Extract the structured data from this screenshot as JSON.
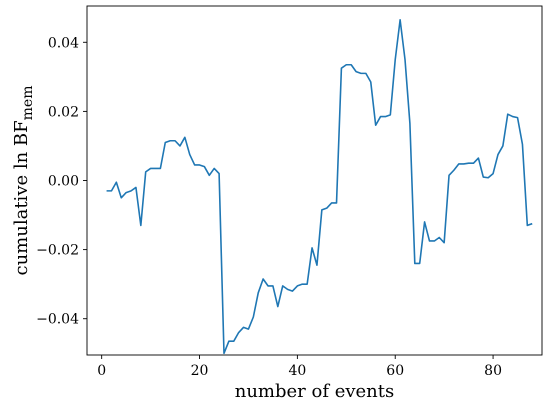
{
  "chart_data": {
    "type": "line",
    "title": "",
    "xlabel": "number of events",
    "ylabel": "cumulative ln BF",
    "ylabel_subscript": "mem",
    "xlim": [
      -3,
      90
    ],
    "ylim": [
      -0.0505,
      0.0505
    ],
    "xticks": [
      0,
      20,
      40,
      60,
      80
    ],
    "xtick_labels": [
      "0",
      "20",
      "40",
      "60",
      "80"
    ],
    "yticks": [
      -0.04,
      -0.02,
      0.0,
      0.02,
      0.04
    ],
    "ytick_labels": [
      "−0.04",
      "−0.02",
      "0.00",
      "0.02",
      "0.04"
    ],
    "grid": false,
    "series": [
      {
        "color": "#1f77b4",
        "x": [
          1,
          2,
          3,
          4,
          5,
          6,
          7,
          8,
          9,
          10,
          11,
          12,
          13,
          14,
          15,
          16,
          17,
          18,
          19,
          20,
          21,
          22,
          23,
          24,
          25,
          26,
          27,
          28,
          29,
          30,
          31,
          32,
          33,
          34,
          35,
          36,
          37,
          38,
          39,
          40,
          41,
          42,
          43,
          44,
          45,
          46,
          47,
          48,
          49,
          50,
          51,
          52,
          53,
          54,
          55,
          56,
          57,
          58,
          59,
          60,
          61,
          62,
          63,
          64,
          65,
          66,
          67,
          68,
          69,
          70,
          71,
          72,
          73,
          74,
          75,
          76,
          77,
          78,
          79,
          80,
          81,
          82,
          83,
          84,
          85,
          86,
          87,
          88
        ],
        "y": [
          -0.003,
          -0.003,
          -0.0005,
          -0.005,
          -0.0035,
          -0.003,
          -0.002,
          -0.013,
          0.0025,
          0.0035,
          0.0035,
          0.0035,
          0.011,
          0.0115,
          0.0115,
          0.01,
          0.0125,
          0.0075,
          0.0045,
          0.0045,
          0.004,
          0.0015,
          0.0035,
          0.002,
          -0.05,
          -0.0465,
          -0.0465,
          -0.044,
          -0.0425,
          -0.043,
          -0.0395,
          -0.0325,
          -0.0285,
          -0.0305,
          -0.0305,
          -0.0365,
          -0.0305,
          -0.0315,
          -0.032,
          -0.0305,
          -0.03,
          -0.03,
          -0.0195,
          -0.0245,
          -0.0085,
          -0.008,
          -0.0065,
          -0.0065,
          0.0325,
          0.0335,
          0.0335,
          0.0315,
          0.031,
          0.031,
          0.0285,
          0.016,
          0.0185,
          0.0185,
          0.019,
          0.035,
          0.0465,
          0.035,
          0.0165,
          -0.024,
          -0.024,
          -0.012,
          -0.0175,
          -0.0175,
          -0.0165,
          -0.018,
          0.0015,
          0.003,
          0.0048,
          0.0048,
          0.005,
          0.005,
          0.0065,
          0.001,
          0.0008,
          0.002,
          0.0075,
          0.01,
          0.0192,
          0.0185,
          0.0182,
          0.0105,
          -0.013,
          -0.0125
        ]
      }
    ]
  }
}
